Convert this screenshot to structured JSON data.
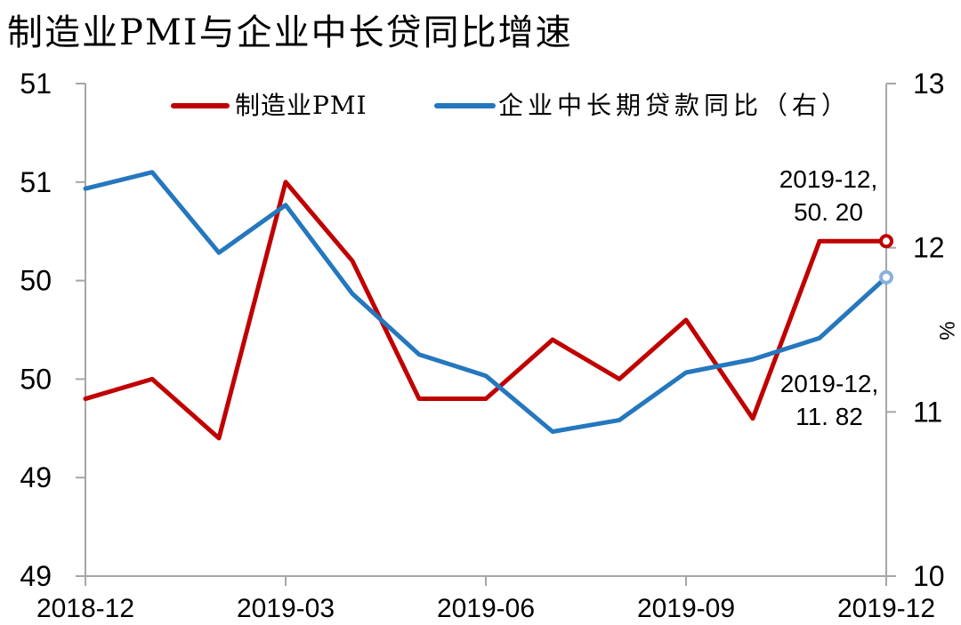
{
  "title": "制造业PMI与企业中长贷同比增速",
  "legend": {
    "items": [
      {
        "label": "制造业PMI",
        "color": "#c00000"
      },
      {
        "label": "企业中长期贷款同比（右）",
        "color": "#2577be"
      }
    ]
  },
  "annotations": {
    "pmi": {
      "line1": "2019-12,",
      "line2": "50. 20"
    },
    "loan": {
      "line1": "2019-12,",
      "line2": "11. 82"
    }
  },
  "chart_data": {
    "type": "line",
    "x": [
      "2018-12",
      "2019-01",
      "2019-02",
      "2019-03",
      "2019-04",
      "2019-05",
      "2019-06",
      "2019-07",
      "2019-08",
      "2019-09",
      "2019-10",
      "2019-11",
      "2019-12"
    ],
    "x_tick_indices": [
      0,
      3,
      6,
      9,
      12
    ],
    "left_axis": {
      "min": 48.5,
      "max": 51.0,
      "ticks": [
        48.5,
        49.0,
        49.5,
        50.0,
        50.5,
        51.0
      ],
      "tick_labels": [
        "49",
        "49",
        "50",
        "50",
        "51",
        "51"
      ]
    },
    "right_axis": {
      "min": 10,
      "max": 13,
      "ticks": [
        10,
        11,
        12,
        13
      ],
      "tick_labels": [
        "10",
        "11",
        "12",
        "13"
      ],
      "unit": "%"
    },
    "series": [
      {
        "name": "制造业PMI",
        "axis": "left",
        "color": "#c00000",
        "marker_color": "#c00000",
        "values": [
          49.4,
          49.5,
          49.2,
          50.5,
          50.1,
          49.4,
          49.4,
          49.7,
          49.5,
          49.8,
          49.3,
          50.2,
          50.2
        ]
      },
      {
        "name": "企业中长期贷款同比（右）",
        "axis": "right",
        "color": "#2577be",
        "marker_color": "#8ab0dc",
        "values": [
          12.36,
          12.46,
          11.97,
          12.26,
          11.72,
          11.35,
          11.22,
          10.88,
          10.95,
          11.24,
          11.32,
          11.45,
          11.82
        ]
      }
    ],
    "grid": false,
    "legend_position": "top",
    "axis_color": "#a6a6a6"
  }
}
